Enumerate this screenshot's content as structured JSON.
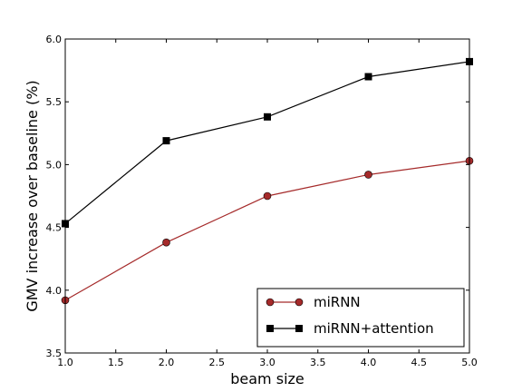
{
  "chart_data": {
    "type": "line",
    "xlabel": "beam size",
    "ylabel": "GMV increase over baseline (%)",
    "xlim": [
      1.0,
      5.0
    ],
    "ylim": [
      3.5,
      6.0
    ],
    "xticks": [
      "1.0",
      "1.5",
      "2.0",
      "2.5",
      "3.0",
      "3.5",
      "4.0",
      "4.5",
      "5.0"
    ],
    "yticks": [
      "3.5",
      "4.0",
      "4.5",
      "5.0",
      "5.5",
      "6.0"
    ],
    "grid": false,
    "legend_position": "bottom-right",
    "series": [
      {
        "name": "miRNN",
        "color": "#a52a2a",
        "marker": "circle",
        "x": [
          1.0,
          2.0,
          3.0,
          4.0,
          5.0
        ],
        "y": [
          3.92,
          4.38,
          4.75,
          4.92,
          5.03
        ]
      },
      {
        "name": "miRNN+attention",
        "color": "#000000",
        "marker": "square",
        "x": [
          1.0,
          2.0,
          3.0,
          4.0,
          5.0
        ],
        "y": [
          4.53,
          5.19,
          5.38,
          5.7,
          5.82
        ]
      }
    ]
  }
}
